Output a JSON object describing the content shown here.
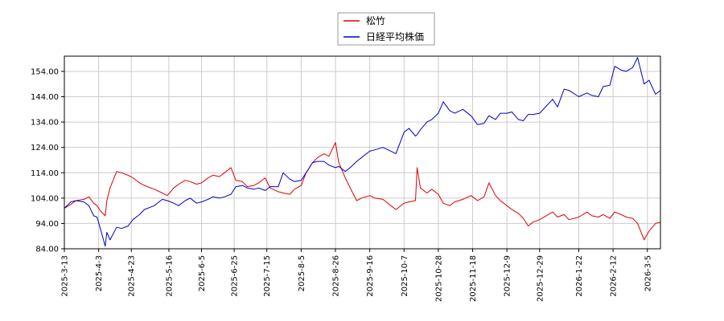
{
  "chart_data": {
    "type": "line",
    "title": "",
    "xlabel": "",
    "ylabel": "",
    "ylim": [
      84.0,
      160.0
    ],
    "y_ticks": [
      "154.00",
      "144.00",
      "134.00",
      "124.00",
      "114.00",
      "104.00",
      "94.00",
      "84.00"
    ],
    "x_ticks": [
      "2025-3-13",
      "2025-4-3",
      "2025-4-23",
      "2025-5-16",
      "2025-6-5",
      "2025-6-25",
      "2025-7-15",
      "2025-8-5",
      "2025-8-26",
      "2025-9-16",
      "2025-10-7",
      "2025-10-28",
      "2025-11-18",
      "2025-12-9",
      "2025-12-29",
      "2026-1-22",
      "2026-2-12",
      "2026-3-5"
    ],
    "grid": true,
    "legend": "top-center",
    "series": [
      {
        "name": "松竹",
        "color": "#dd0000",
        "points": [
          [
            "2025-3-13",
            100.0
          ],
          [
            "2025-3-17",
            101.5
          ],
          [
            "2025-3-20",
            103.0
          ],
          [
            "2025-3-25",
            103.5
          ],
          [
            "2025-3-28",
            104.5
          ],
          [
            "2025-3-31",
            102.0
          ],
          [
            "2025-4-2",
            101.0
          ],
          [
            "2025-4-4",
            99.0
          ],
          [
            "2025-4-7",
            97.0
          ],
          [
            "2025-4-8",
            103.0
          ],
          [
            "2025-4-10",
            108.0
          ],
          [
            "2025-4-14",
            114.5
          ],
          [
            "2025-4-17",
            114.0
          ],
          [
            "2025-4-21",
            113.0
          ],
          [
            "2025-4-24",
            112.0
          ],
          [
            "2025-4-28",
            110.0
          ],
          [
            "2025-5-1",
            109.0
          ],
          [
            "2025-5-7",
            107.5
          ],
          [
            "2025-5-12",
            106.0
          ],
          [
            "2025-5-15",
            105.0
          ],
          [
            "2025-5-19",
            108.0
          ],
          [
            "2025-5-22",
            109.5
          ],
          [
            "2025-5-26",
            111.0
          ],
          [
            "2025-5-29",
            110.5
          ],
          [
            "2025-6-2",
            109.5
          ],
          [
            "2025-6-5",
            110.0
          ],
          [
            "2025-6-9",
            112.0
          ],
          [
            "2025-6-12",
            113.0
          ],
          [
            "2025-6-16",
            112.5
          ],
          [
            "2025-6-19",
            114.0
          ],
          [
            "2025-6-23",
            116.0
          ],
          [
            "2025-6-26",
            111.0
          ],
          [
            "2025-6-30",
            110.5
          ],
          [
            "2025-7-3",
            108.5
          ],
          [
            "2025-7-7",
            109.0
          ],
          [
            "2025-7-10",
            110.0
          ],
          [
            "2025-7-14",
            112.0
          ],
          [
            "2025-7-17",
            108.0
          ],
          [
            "2025-7-22",
            106.5
          ],
          [
            "2025-7-25",
            106.0
          ],
          [
            "2025-7-29",
            105.5
          ],
          [
            "2025-8-1",
            107.5
          ],
          [
            "2025-8-5",
            109.0
          ],
          [
            "2025-8-8",
            114.0
          ],
          [
            "2025-8-12",
            118.0
          ],
          [
            "2025-8-15",
            120.0
          ],
          [
            "2025-8-19",
            121.5
          ],
          [
            "2025-8-22",
            120.5
          ],
          [
            "2025-8-26",
            126.0
          ],
          [
            "2025-8-28",
            118.0
          ],
          [
            "2025-9-1",
            112.0
          ],
          [
            "2025-9-4",
            108.0
          ],
          [
            "2025-9-8",
            103.0
          ],
          [
            "2025-9-11",
            104.0
          ],
          [
            "2025-9-16",
            105.0
          ],
          [
            "2025-9-19",
            104.0
          ],
          [
            "2025-9-24",
            103.5
          ],
          [
            "2025-9-29",
            101.0
          ],
          [
            "2025-10-2",
            99.5
          ],
          [
            "2025-10-7",
            102.0
          ],
          [
            "2025-10-10",
            102.5
          ],
          [
            "2025-10-14",
            103.0
          ],
          [
            "2025-10-15",
            116.0
          ],
          [
            "2025-10-17",
            108.0
          ],
          [
            "2025-10-21",
            106.0
          ],
          [
            "2025-10-24",
            107.5
          ],
          [
            "2025-10-28",
            105.5
          ],
          [
            "2025-10-31",
            102.0
          ],
          [
            "2025-11-4",
            101.0
          ],
          [
            "2025-11-7",
            102.5
          ],
          [
            "2025-11-12",
            103.5
          ],
          [
            "2025-11-17",
            105.0
          ],
          [
            "2025-11-21",
            103.0
          ],
          [
            "2025-11-25",
            104.5
          ],
          [
            "2025-11-28",
            110.0
          ],
          [
            "2025-12-2",
            105.0
          ],
          [
            "2025-12-5",
            103.0
          ],
          [
            "2025-12-9",
            101.0
          ],
          [
            "2025-12-12",
            99.5
          ],
          [
            "2025-12-16",
            98.0
          ],
          [
            "2025-12-19",
            96.0
          ],
          [
            "2025-12-22",
            93.0
          ],
          [
            "2025-12-25",
            94.5
          ],
          [
            "2025-12-29",
            95.5
          ],
          [
            "2026-1-6",
            98.5
          ],
          [
            "2026-1-9",
            96.5
          ],
          [
            "2026-1-13",
            97.5
          ],
          [
            "2026-1-16",
            95.5
          ],
          [
            "2026-1-22",
            96.5
          ],
          [
            "2026-1-27",
            98.5
          ],
          [
            "2026-1-30",
            97.0
          ],
          [
            "2026-2-3",
            96.5
          ],
          [
            "2026-2-6",
            97.5
          ],
          [
            "2026-2-10",
            96.0
          ],
          [
            "2026-2-13",
            98.5
          ],
          [
            "2026-2-17",
            97.5
          ],
          [
            "2026-2-20",
            96.5
          ],
          [
            "2026-2-24",
            96.0
          ],
          [
            "2026-2-27",
            94.0
          ],
          [
            "2026-3-3",
            87.5
          ],
          [
            "2026-3-6",
            91.0
          ],
          [
            "2026-3-10",
            94.0
          ],
          [
            "2026-3-13",
            94.5
          ]
        ]
      },
      {
        "name": "日経平均株価",
        "color": "#0000cc",
        "points": [
          [
            "2025-3-13",
            100.0
          ],
          [
            "2025-3-17",
            102.5
          ],
          [
            "2025-3-20",
            103.0
          ],
          [
            "2025-3-25",
            102.5
          ],
          [
            "2025-3-28",
            101.0
          ],
          [
            "2025-3-31",
            97.0
          ],
          [
            "2025-4-2",
            96.5
          ],
          [
            "2025-4-4",
            92.0
          ],
          [
            "2025-4-7",
            85.0
          ],
          [
            "2025-4-8",
            90.5
          ],
          [
            "2025-4-10",
            87.5
          ],
          [
            "2025-4-14",
            92.5
          ],
          [
            "2025-4-17",
            92.0
          ],
          [
            "2025-4-21",
            93.0
          ],
          [
            "2025-4-24",
            95.5
          ],
          [
            "2025-4-28",
            97.5
          ],
          [
            "2025-5-1",
            99.5
          ],
          [
            "2025-5-7",
            101.0
          ],
          [
            "2025-5-12",
            103.5
          ],
          [
            "2025-5-15",
            103.0
          ],
          [
            "2025-5-19",
            102.0
          ],
          [
            "2025-5-22",
            101.0
          ],
          [
            "2025-5-26",
            103.0
          ],
          [
            "2025-5-29",
            104.0
          ],
          [
            "2025-6-2",
            102.0
          ],
          [
            "2025-6-5",
            102.5
          ],
          [
            "2025-6-9",
            103.5
          ],
          [
            "2025-6-12",
            104.5
          ],
          [
            "2025-6-16",
            104.0
          ],
          [
            "2025-6-19",
            104.5
          ],
          [
            "2025-6-23",
            105.5
          ],
          [
            "2025-6-26",
            108.5
          ],
          [
            "2025-6-30",
            109.0
          ],
          [
            "2025-7-3",
            108.0
          ],
          [
            "2025-7-7",
            107.5
          ],
          [
            "2025-7-10",
            108.0
          ],
          [
            "2025-7-14",
            107.0
          ],
          [
            "2025-7-17",
            108.5
          ],
          [
            "2025-7-22",
            108.5
          ],
          [
            "2025-7-25",
            114.0
          ],
          [
            "2025-7-29",
            111.5
          ],
          [
            "2025-8-1",
            110.5
          ],
          [
            "2025-8-5",
            111.0
          ],
          [
            "2025-8-8",
            114.0
          ],
          [
            "2025-8-12",
            118.0
          ],
          [
            "2025-8-15",
            118.5
          ],
          [
            "2025-8-19",
            118.5
          ],
          [
            "2025-8-22",
            117.0
          ],
          [
            "2025-8-26",
            116.0
          ],
          [
            "2025-8-28",
            116.5
          ],
          [
            "2025-9-1",
            114.5
          ],
          [
            "2025-9-4",
            116.0
          ],
          [
            "2025-9-8",
            118.5
          ],
          [
            "2025-9-11",
            120.0
          ],
          [
            "2025-9-16",
            122.5
          ],
          [
            "2025-9-19",
            123.0
          ],
          [
            "2025-9-24",
            124.0
          ],
          [
            "2025-9-29",
            122.5
          ],
          [
            "2025-10-2",
            121.5
          ],
          [
            "2025-10-7",
            130.0
          ],
          [
            "2025-10-10",
            131.5
          ],
          [
            "2025-10-14",
            128.5
          ],
          [
            "2025-10-15",
            129.0
          ],
          [
            "2025-10-17",
            131.0
          ],
          [
            "2025-10-21",
            134.0
          ],
          [
            "2025-10-24",
            135.0
          ],
          [
            "2025-10-28",
            137.5
          ],
          [
            "2025-10-31",
            142.0
          ],
          [
            "2025-11-4",
            138.5
          ],
          [
            "2025-11-7",
            137.5
          ],
          [
            "2025-11-12",
            139.0
          ],
          [
            "2025-11-17",
            136.5
          ],
          [
            "2025-11-21",
            133.0
          ],
          [
            "2025-11-25",
            133.5
          ],
          [
            "2025-11-28",
            136.5
          ],
          [
            "2025-12-2",
            135.0
          ],
          [
            "2025-12-5",
            137.5
          ],
          [
            "2025-12-9",
            137.5
          ],
          [
            "2025-12-12",
            138.0
          ],
          [
            "2025-12-16",
            135.0
          ],
          [
            "2025-12-19",
            134.5
          ],
          [
            "2025-12-22",
            137.0
          ],
          [
            "2025-12-25",
            137.0
          ],
          [
            "2025-12-29",
            137.5
          ],
          [
            "2026-1-6",
            143.0
          ],
          [
            "2026-1-9",
            140.0
          ],
          [
            "2026-1-13",
            147.0
          ],
          [
            "2026-1-16",
            146.5
          ],
          [
            "2026-1-22",
            144.0
          ],
          [
            "2026-1-27",
            145.5
          ],
          [
            "2026-1-30",
            144.5
          ],
          [
            "2026-2-3",
            144.0
          ],
          [
            "2026-2-6",
            148.0
          ],
          [
            "2026-2-10",
            148.5
          ],
          [
            "2026-2-13",
            156.0
          ],
          [
            "2026-2-17",
            154.5
          ],
          [
            "2026-2-20",
            154.0
          ],
          [
            "2026-2-24",
            155.5
          ],
          [
            "2026-2-27",
            159.5
          ],
          [
            "2026-3-3",
            149.0
          ],
          [
            "2026-3-6",
            150.5
          ],
          [
            "2026-3-10",
            145.0
          ],
          [
            "2026-3-13",
            146.5
          ]
        ]
      }
    ]
  }
}
